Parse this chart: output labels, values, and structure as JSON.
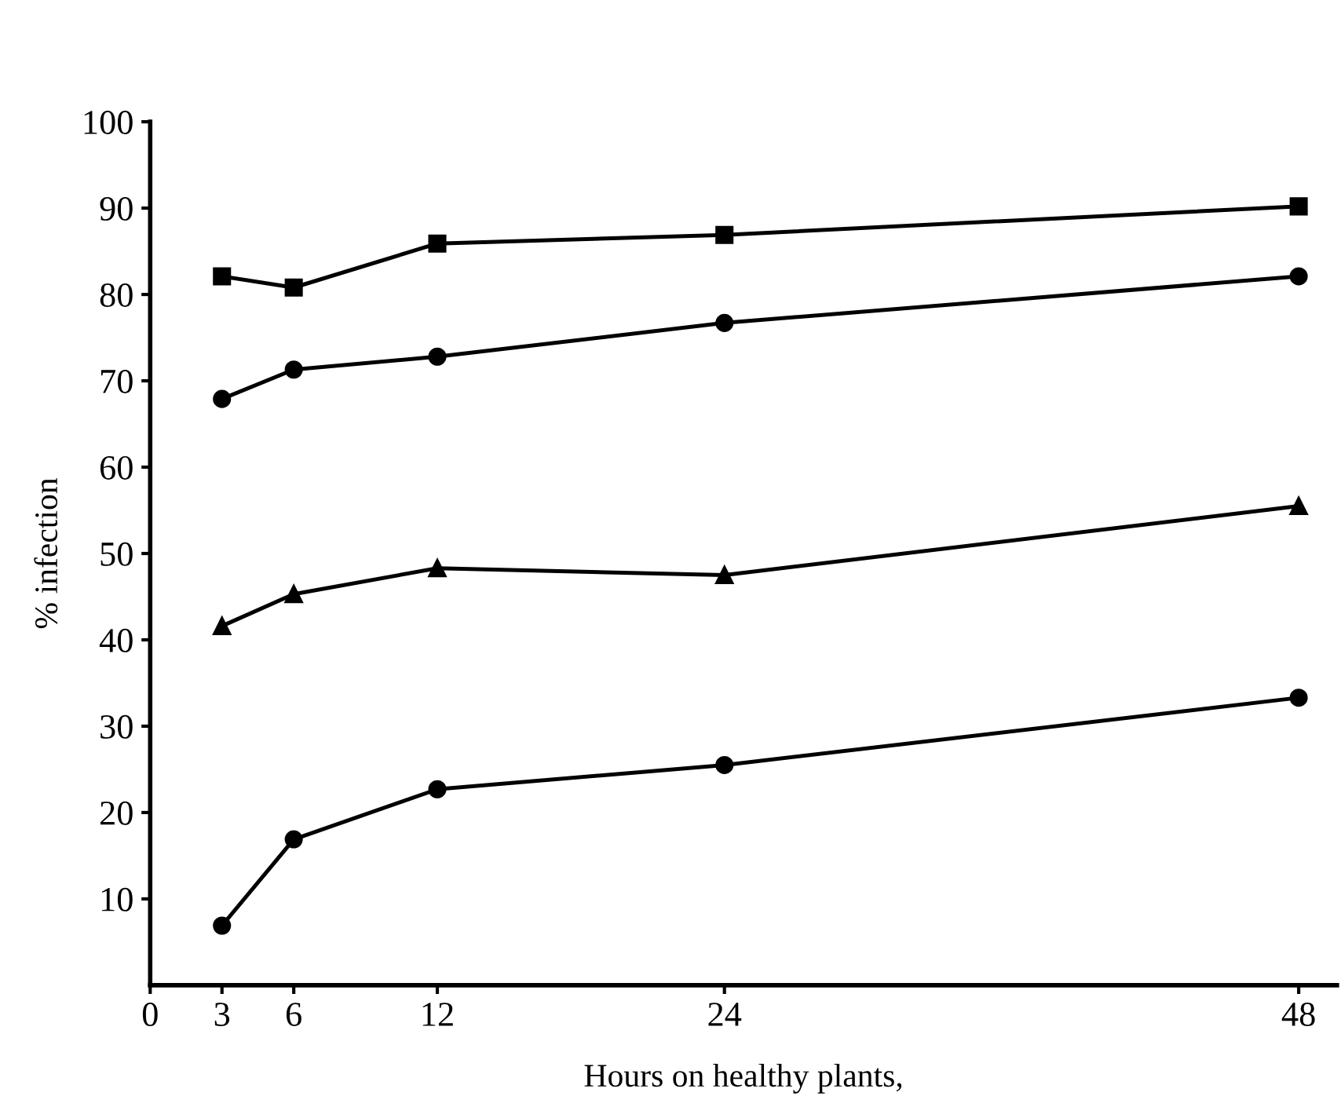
{
  "chart_data": {
    "type": "line",
    "xlabel": "Hours on healthy plants,",
    "ylabel": "% infection",
    "x": [
      3,
      6,
      12,
      24,
      48
    ],
    "series": [
      {
        "color": "#000000",
        "marker": "square",
        "values": [
          82.1,
          80.8,
          85.9,
          86.9,
          90.2
        ]
      },
      {
        "color": "#000000",
        "marker": "circle",
        "values": [
          67.9,
          71.3,
          72.8,
          76.7,
          82.1
        ]
      },
      {
        "color": "#000000",
        "marker": "triangle",
        "values": [
          41.6,
          45.3,
          48.3,
          47.5,
          55.5
        ]
      },
      {
        "color": "#000000",
        "marker": "circle",
        "values": [
          6.9,
          16.9,
          22.7,
          25.5,
          33.3
        ]
      }
    ],
    "xlim": [
      0,
      49.6
    ],
    "ylim": [
      0,
      100
    ],
    "xticks": [
      0,
      3,
      6,
      12,
      24,
      48
    ],
    "yticks": [
      10,
      20,
      30,
      40,
      50,
      60,
      70,
      80,
      90,
      100
    ],
    "grid": false,
    "legend": false,
    "line_style": "solid"
  }
}
